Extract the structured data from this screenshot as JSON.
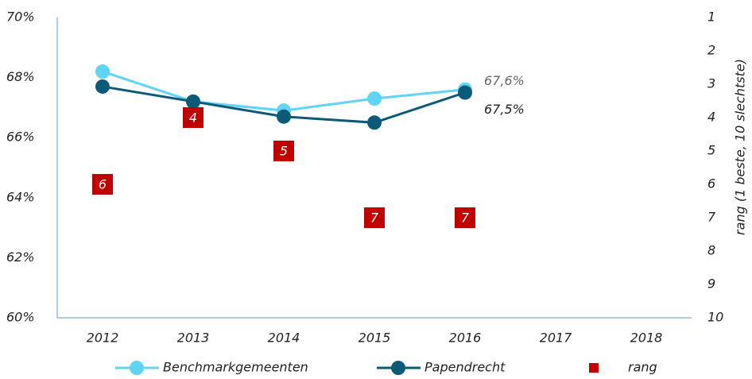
{
  "chart_data": {
    "type": "line",
    "categories": [
      "2012",
      "2013",
      "2014",
      "2015",
      "2016",
      "2017",
      "2018"
    ],
    "ylim": [
      60,
      70
    ],
    "yticks": [
      {
        "value": 60,
        "label": "60%"
      },
      {
        "value": 62,
        "label": "62%"
      },
      {
        "value": 64,
        "label": "64%"
      },
      {
        "value": 66,
        "label": "66%"
      },
      {
        "value": 68,
        "label": "68%"
      },
      {
        "value": 70,
        "label": "70%"
      }
    ],
    "y2lim": [
      10,
      1
    ],
    "y2ticks": [
      1,
      2,
      3,
      4,
      5,
      6,
      7,
      8,
      9,
      10
    ],
    "y2label": "rang (1 beste, 10 slechtste)",
    "series": [
      {
        "name": "Benchmarkgemeenten",
        "color": "#5fd4f4",
        "values": [
          68.2,
          67.2,
          66.9,
          67.3,
          67.6,
          null,
          null
        ],
        "value_labels": [
          null,
          null,
          null,
          null,
          "67,6%",
          null,
          null
        ]
      },
      {
        "name": "Papendrecht",
        "color": "#0b5a78",
        "values": [
          67.7,
          67.2,
          66.7,
          66.5,
          67.5,
          null,
          null
        ],
        "value_labels": [
          null,
          null,
          null,
          null,
          "67,5%",
          null,
          null
        ]
      },
      {
        "name": "rang",
        "color": "#c00000",
        "axis": "y2",
        "marker": "square",
        "values": [
          6,
          4,
          5,
          7,
          7,
          null,
          null
        ]
      }
    ]
  }
}
